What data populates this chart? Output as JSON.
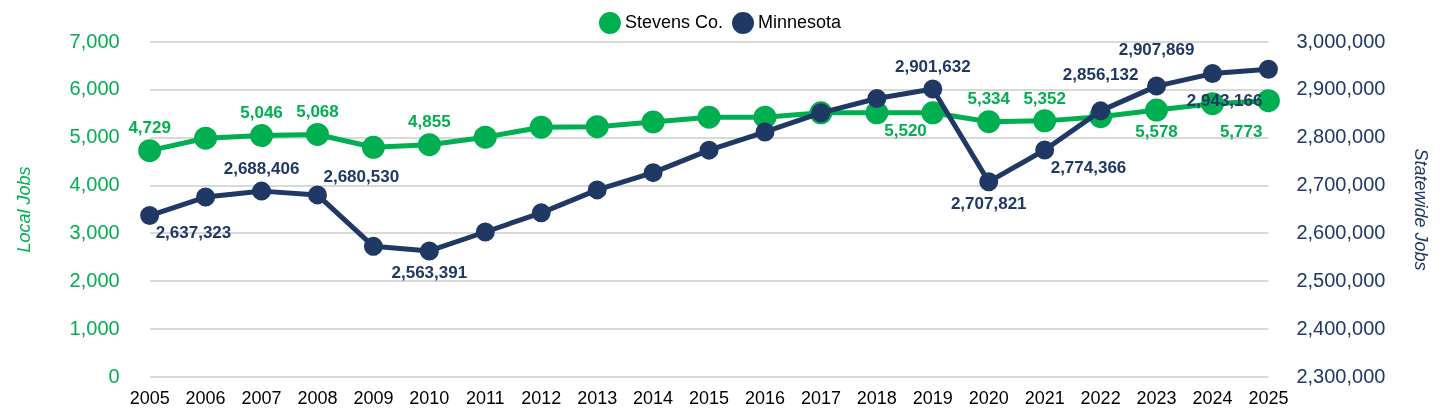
{
  "chart_data": {
    "type": "line",
    "xlabel": null,
    "ylabel": "Local Jobs",
    "y2label": "Statewide Jobs",
    "categories": [
      "2005",
      "2006",
      "2007",
      "2008",
      "2009",
      "2010",
      "2011",
      "2012",
      "2013",
      "2014",
      "2015",
      "2016",
      "2017",
      "2018",
      "2019",
      "2020",
      "2021",
      "2022",
      "2023",
      "2024",
      "2025"
    ],
    "series": [
      {
        "name": "Stevens Co.",
        "color": "#00b050",
        "values": [
          4729,
          4990,
          5046,
          5068,
          4800,
          4855,
          5010,
          5220,
          5230,
          5330,
          5430,
          5430,
          5520,
          5520,
          5520,
          5334,
          5352,
          5440,
          5578,
          5710,
          5773
        ],
        "value_labels": [
          "4,729",
          null,
          "5,046",
          "5,068",
          null,
          "4,855",
          null,
          null,
          null,
          null,
          null,
          null,
          null,
          null,
          "5,520",
          "5,334",
          "5,352",
          null,
          "5,578",
          null,
          "5,773"
        ]
      },
      {
        "name": "Minnesota",
        "color": "#1f3864",
        "axis": "y2",
        "values": [
          2637323,
          2676000,
          2688406,
          2680530,
          2573000,
          2563391,
          2603000,
          2643000,
          2691000,
          2727000,
          2774000,
          2812000,
          2852000,
          2882000,
          2901632,
          2707821,
          2774366,
          2856132,
          2907869,
          2934000,
          2943166
        ],
        "value_labels": [
          "2,637,323",
          null,
          "2,688,406",
          "2,680,530",
          null,
          "2,563,391",
          null,
          null,
          null,
          null,
          null,
          null,
          null,
          null,
          "2,901,632",
          "2,707,821",
          "2,774,366",
          "2,856,132",
          "2,907,869",
          null,
          "2,943,166"
        ]
      }
    ],
    "ylim": [
      0,
      7000
    ],
    "yticks": [
      0,
      {
        "value": 1000,
        "label": "1,000"
      },
      {
        "value": 2000,
        "label": "2,000"
      },
      {
        "value": 3000,
        "label": "3,000"
      },
      {
        "value": 4000,
        "label": "4,000"
      },
      {
        "value": 5000,
        "label": "5,000"
      },
      {
        "value": 6000,
        "label": "6,000"
      },
      {
        "value": 7000,
        "label": "7,000"
      }
    ],
    "y2lim": [
      2300000,
      3000000
    ],
    "y2ticks": [
      {
        "value": 2300000,
        "label": "2,300,000"
      },
      {
        "value": 2400000,
        "label": "2,400,000"
      },
      {
        "value": 2500000,
        "label": "2,500,000"
      },
      {
        "value": 2600000,
        "label": "2,600,000"
      },
      {
        "value": 2700000,
        "label": "2,700,000"
      },
      {
        "value": 2800000,
        "label": "2,800,000"
      },
      {
        "value": 2900000,
        "label": "2,900,000"
      },
      {
        "value": 3000000,
        "label": "3,000,000"
      }
    ],
    "grid": "y",
    "legend": "top",
    "marker": "circle",
    "line_style": "solid"
  }
}
